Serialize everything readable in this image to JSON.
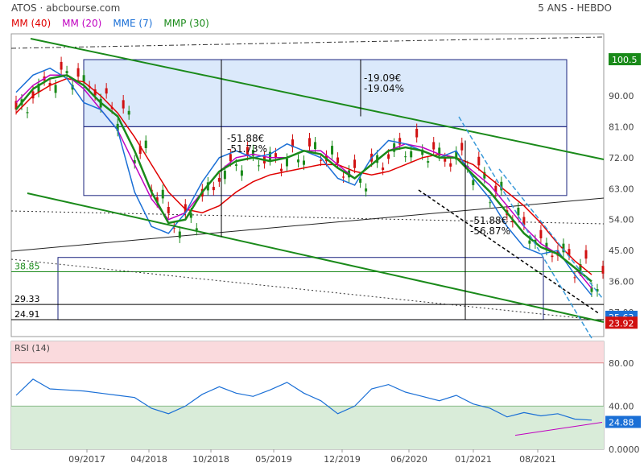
{
  "header": {
    "title": "ATOS · abcbourse.com",
    "period": "5 ANS - HEBDO"
  },
  "legend": [
    {
      "label": "MM (40)",
      "color": "#e00000"
    },
    {
      "label": "MM (20)",
      "color": "#c000c0"
    },
    {
      "label": "MME (7)",
      "color": "#1a6fd6"
    },
    {
      "label": "MMP (30)",
      "color": "#1a8a1a"
    }
  ],
  "colors": {
    "up": "#1a8a1a",
    "down": "#d01010",
    "zone": "#dbe9fb",
    "rsi_high": "#fadadd",
    "rsi_low": "#d9ecd9"
  },
  "chart_data": [
    {
      "type": "line",
      "title": "ATOS",
      "ylim": [
        20,
        108
      ],
      "y_ticks": [
        27,
        36,
        45,
        54,
        63,
        72,
        81,
        90
      ],
      "y_tick_labels": [
        "27.00",
        "36.00",
        "45.00",
        "54.00",
        "63.00",
        "72.00",
        "81.00",
        "90.00"
      ],
      "x_tick_labels": [
        "09/2017",
        "04/2018",
        "10/2018",
        "05/2019",
        "12/2019",
        "06/2020",
        "01/2021",
        "08/2021"
      ],
      "series": [
        {
          "name": "MM (40)",
          "color": "#e00000",
          "values": [
            85,
            90,
            93,
            95,
            94,
            90,
            85,
            78,
            70,
            62,
            57,
            56,
            58,
            62,
            65,
            67,
            68,
            69,
            70,
            70,
            68,
            67,
            68,
            70,
            72,
            73,
            72,
            70,
            66,
            62,
            58,
            53,
            47,
            42,
            38
          ]
        },
        {
          "name": "MM (20)",
          "color": "#c000c0",
          "values": [
            88,
            93,
            96,
            96,
            92,
            86,
            80,
            70,
            60,
            54,
            56,
            62,
            68,
            72,
            73,
            72,
            72,
            74,
            74,
            70,
            66,
            70,
            74,
            76,
            75,
            73,
            72,
            68,
            64,
            58,
            52,
            47,
            44,
            40,
            34
          ]
        },
        {
          "name": "MME (7)",
          "color": "#1a6fd6",
          "values": [
            91,
            96,
            98,
            95,
            88,
            86,
            80,
            62,
            52,
            50,
            56,
            65,
            72,
            74,
            72,
            73,
            76,
            74,
            72,
            66,
            64,
            72,
            77,
            76,
            74,
            72,
            74,
            66,
            60,
            52,
            46,
            44,
            45,
            38,
            32
          ]
        },
        {
          "name": "MMP (30)",
          "color": "#1a8a1a",
          "values": [
            86,
            92,
            95,
            96,
            93,
            88,
            84,
            74,
            62,
            53,
            54,
            62,
            68,
            71,
            72,
            71,
            72,
            74,
            73,
            69,
            66,
            70,
            74,
            75,
            74,
            72,
            72,
            67,
            62,
            56,
            50,
            46,
            44,
            40,
            36
          ]
        }
      ],
      "price_levels": [
        {
          "label": "100.5",
          "value": 100.5,
          "color": "#1a8a1a"
        },
        {
          "label": "38.85",
          "value": 38.85,
          "color": "#1a8a1a"
        },
        {
          "label": "29.33",
          "value": 29.33,
          "color": "#000"
        },
        {
          "label": "24.91",
          "value": 24.91,
          "color": "#000"
        },
        {
          "label": "25.63",
          "value": 25.63,
          "color": "#1a6fd6"
        },
        {
          "label": "23.92",
          "value": 23.92,
          "color": "#d01010"
        }
      ],
      "annotations": [
        {
          "lines": [
            "-19.09€",
            "-19.04%"
          ]
        },
        {
          "lines": [
            "-51.88€",
            "-51.73%"
          ]
        },
        {
          "lines": [
            "-51.88€",
            "-56.87%"
          ]
        }
      ]
    },
    {
      "type": "line",
      "title": "RSI (14)",
      "ylim": [
        0,
        100
      ],
      "y_ticks": [
        0,
        40,
        80
      ],
      "y_tick_labels": [
        "0.0000",
        "40.00",
        "80.00"
      ],
      "series": [
        {
          "name": "RSI (14)",
          "color": "#1a6fd6",
          "values": [
            50,
            65,
            56,
            55,
            54,
            52,
            50,
            48,
            38,
            33,
            40,
            51,
            58,
            52,
            49,
            55,
            62,
            52,
            45,
            33,
            40,
            56,
            60,
            53,
            49,
            45,
            50,
            42,
            38,
            30,
            34,
            31,
            33,
            28,
            27
          ]
        }
      ],
      "last_label": "24.88"
    }
  ]
}
